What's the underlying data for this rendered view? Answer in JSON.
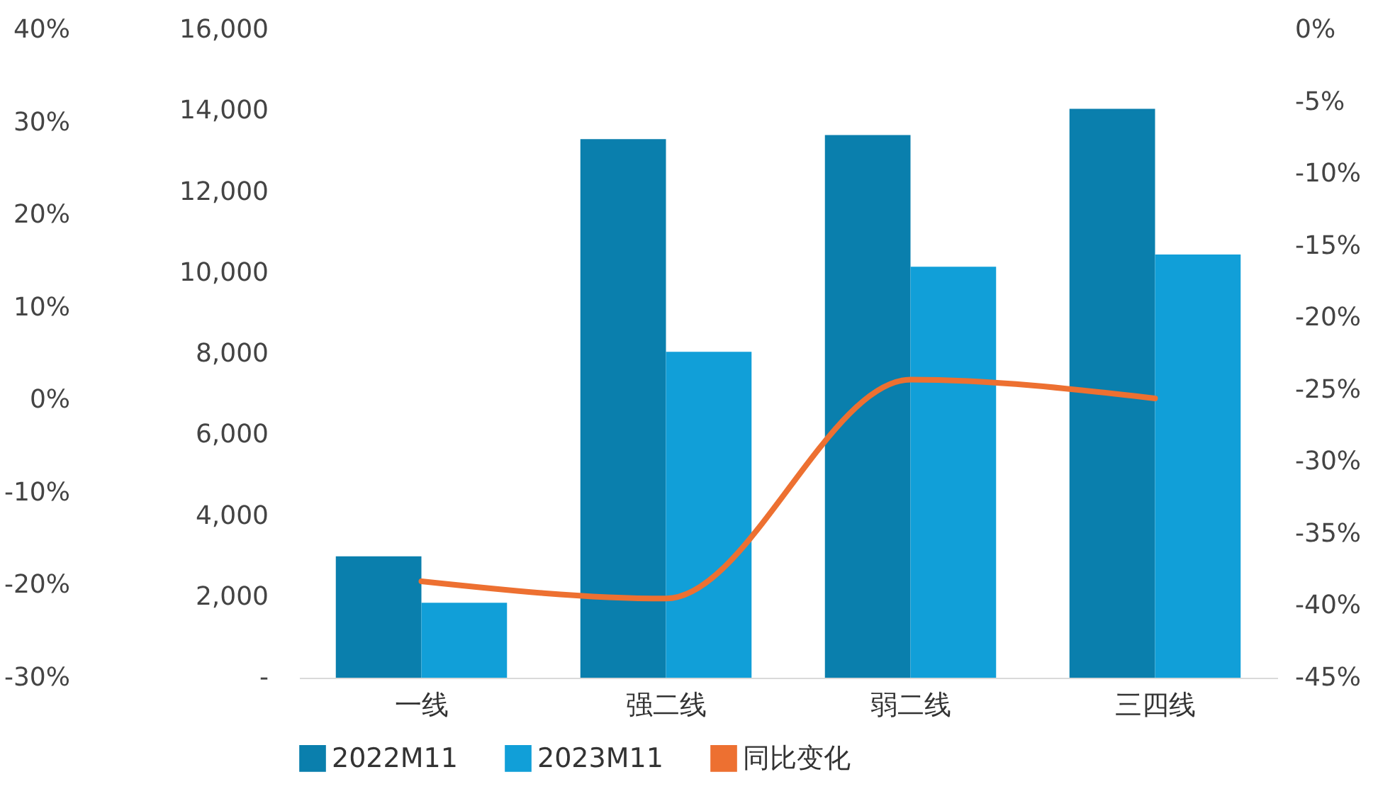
{
  "chart_data": {
    "type": "bar",
    "categories": [
      "一线",
      "强二线",
      "弱二线",
      "三四线"
    ],
    "series": [
      {
        "name": "2022M11",
        "color": "#0a7fad",
        "values": [
          3000,
          13300,
          13400,
          14050
        ]
      },
      {
        "name": "2023M11",
        "color": "#119fd8",
        "values": [
          1850,
          8050,
          10150,
          10450
        ]
      },
      {
        "name": "同比变化",
        "type": "line",
        "axis": "y2",
        "color": "#ed7031",
        "values": [
          -38.3,
          -39.5,
          -24.3,
          -25.6
        ]
      }
    ],
    "ylim": [
      0,
      16000
    ],
    "yticks": [
      {
        "value": 0,
        "label": "-"
      },
      {
        "value": 2000,
        "label": "2,000"
      },
      {
        "value": 4000,
        "label": "4,000"
      },
      {
        "value": 6000,
        "label": "6,000"
      },
      {
        "value": 8000,
        "label": "8,000"
      },
      {
        "value": 10000,
        "label": "10,000"
      },
      {
        "value": 12000,
        "label": "12,000"
      },
      {
        "value": 14000,
        "label": "14,000"
      },
      {
        "value": 16000,
        "label": "16,000"
      }
    ],
    "y2lim": [
      -45,
      0
    ],
    "y2ticks": [
      {
        "value": -45,
        "label": "-45%"
      },
      {
        "value": -40,
        "label": "-40%"
      },
      {
        "value": -35,
        "label": "-35%"
      },
      {
        "value": -30,
        "label": "-30%"
      },
      {
        "value": -25,
        "label": "-25%"
      },
      {
        "value": -20,
        "label": "-20%"
      },
      {
        "value": -15,
        "label": "-15%"
      },
      {
        "value": -10,
        "label": "-10%"
      },
      {
        "value": -5,
        "label": "-5%"
      },
      {
        "value": 0,
        "label": "0%"
      }
    ],
    "y3lim": [
      -30,
      40
    ],
    "y3ticks": [
      {
        "value": -30,
        "label": "-30%"
      },
      {
        "value": -20,
        "label": "-20%"
      },
      {
        "value": -10,
        "label": "-10%"
      },
      {
        "value": 0,
        "label": "0%"
      },
      {
        "value": 10,
        "label": "10%"
      },
      {
        "value": 20,
        "label": "20%"
      },
      {
        "value": 30,
        "label": "30%"
      },
      {
        "value": 40,
        "label": "40%"
      }
    ],
    "legend": "bottom",
    "grid": false
  }
}
